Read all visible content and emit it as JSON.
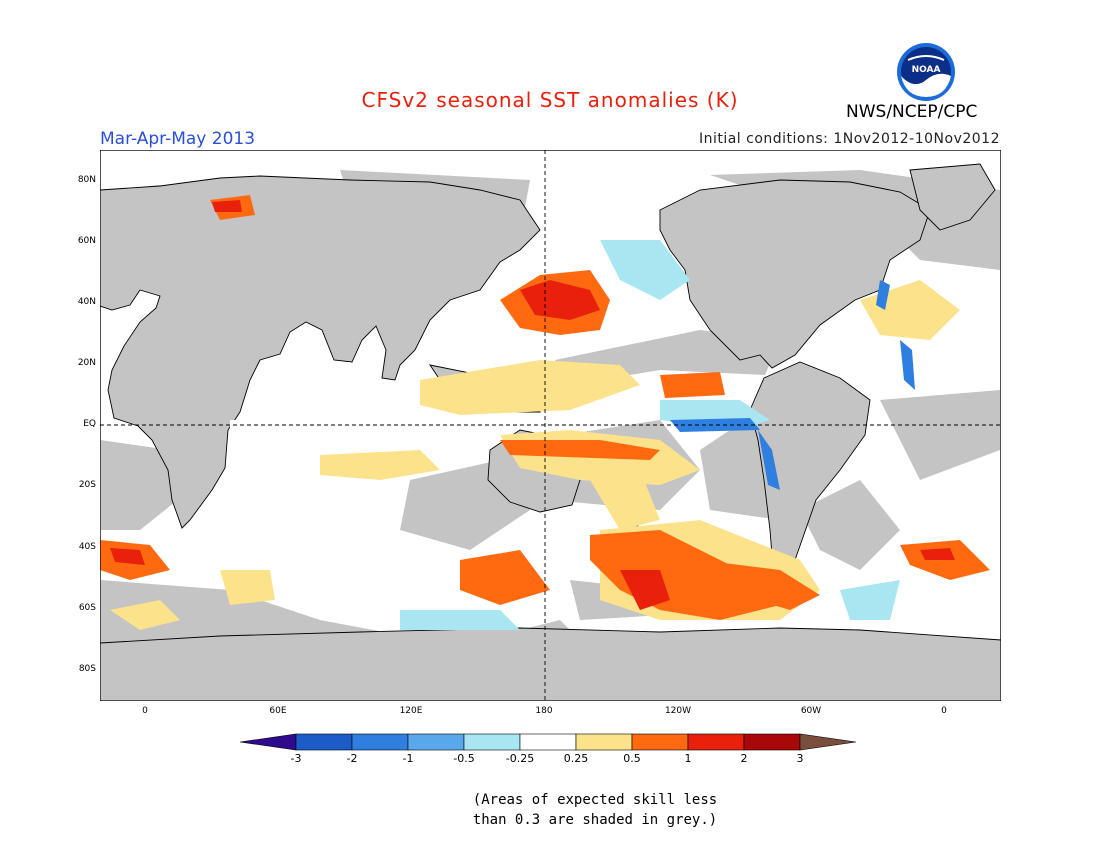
{
  "title": "CFSv2 seasonal SST anomalies (K)",
  "title_color": "#e8200c",
  "org": "NWS/NCEP/CPC",
  "logo_text": "NOAA",
  "season": "Mar-Apr-May 2013",
  "season_color": "#2a4fd6",
  "init": "Initial conditions: 1Nov2012-10Nov2012",
  "lat_labels": [
    "80N",
    "60N",
    "40N",
    "20N",
    "EQ",
    "20S",
    "40S",
    "60S",
    "80S"
  ],
  "lon_labels": [
    "0",
    "60E",
    "120E",
    "180",
    "120W",
    "60W",
    "0"
  ],
  "colorbar": {
    "labels": [
      "-3",
      "-2",
      "-1",
      "-0.5",
      "-0.25",
      "0.25",
      "0.5",
      "1",
      "2",
      "3"
    ],
    "colors": [
      "#2f0a8c",
      "#1c5cc8",
      "#2f7fe0",
      "#5aa8ec",
      "#a8e6f2",
      "#ffffff",
      "#fde28c",
      "#ff6a10",
      "#e8200c",
      "#a80808",
      "#7a4e3c"
    ]
  },
  "note_line1": "(Areas of expected skill less",
  "note_line2": "than 0.3 are shaded in grey.)"
}
